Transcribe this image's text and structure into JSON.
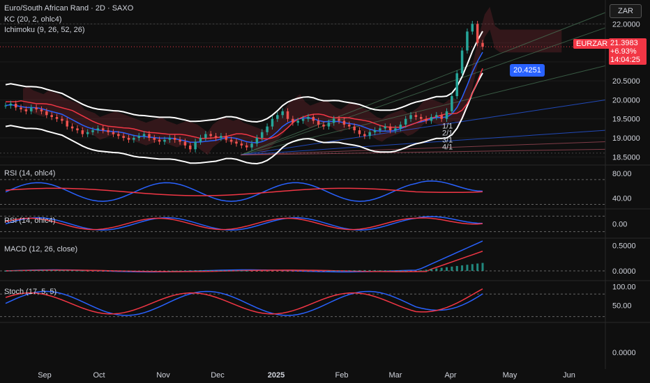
{
  "header": {
    "title": "Euro/South African Rand · 2D · SAXO",
    "kc_label": "KC (20, 2, ohlc4)",
    "ichimoku_label": "Ichimoku (9, 26, 52, 26)",
    "currency": "ZAR"
  },
  "price_badge": {
    "symbol": "EURZAR",
    "price": "21.3983",
    "change": "+6.93%",
    "countdown": "14:04:25"
  },
  "cursor_badge": "20.4251",
  "fib_labels": [
    "1/1",
    "2/1",
    "3/1",
    "4/1"
  ],
  "colors": {
    "up": "#26a69a",
    "down": "#ef5350",
    "blue_line": "#2962ff",
    "red_line": "#f23645",
    "badge_blue": "#2962ff",
    "badge_red": "#f23645"
  },
  "panes": {
    "rsi": {
      "label": "RSI (14, ohlc4)",
      "ticks": [
        "80.00",
        "40.00"
      ]
    },
    "fisher": {
      "label": "Fisher (9)",
      "ticks": [
        "0.00"
      ]
    },
    "macd": {
      "label": "MACD (12, 26, close)",
      "ticks": [
        "0.5000",
        "0.0000"
      ]
    },
    "stoch": {
      "label": "Stoch (17, 5, 5)",
      "ticks": [
        "100.00",
        "50.00"
      ]
    },
    "empty": {
      "ticks": [
        "0.0000"
      ]
    }
  },
  "chart_data": {
    "type": "candlestick",
    "y_ticks": [
      "22.0000",
      "21.5000",
      "21.0000",
      "20.5000",
      "20.0000",
      "19.5000",
      "19.0000",
      "18.5000"
    ],
    "y_tick_values": [
      22.0,
      21.5,
      21.0,
      20.5,
      20.0,
      19.5,
      19.0,
      18.5
    ],
    "ylim": [
      18.45,
      22.3
    ],
    "x_labels": [
      "Sep",
      "Oct",
      "Nov",
      "Dec",
      "2025",
      "Feb",
      "Mar",
      "Apr",
      "May",
      "Jun"
    ],
    "close_series": [
      19.85,
      19.9,
      19.8,
      19.75,
      19.7,
      19.8,
      19.75,
      19.7,
      19.6,
      19.55,
      19.5,
      19.45,
      19.3,
      19.25,
      19.2,
      19.1,
      19.15,
      19.2,
      19.25,
      19.2,
      19.15,
      19.1,
      19.05,
      19.0,
      18.95,
      19.0,
      19.05,
      19.1,
      19.0,
      18.95,
      18.9,
      18.95,
      19.0,
      18.95,
      18.9,
      18.8,
      18.7,
      18.9,
      19.0,
      19.1,
      19.05,
      19.0,
      19.05,
      18.95,
      18.9,
      18.85,
      18.8,
      18.75,
      18.85,
      19.0,
      19.15,
      19.3,
      19.5,
      19.6,
      19.7,
      19.5,
      19.4,
      19.45,
      19.5,
      19.55,
      19.45,
      19.35,
      19.3,
      19.4,
      19.5,
      19.45,
      19.35,
      19.3,
      19.2,
      19.1,
      19.05,
      19.15,
      19.2,
      19.25,
      19.3,
      19.2,
      19.25,
      19.35,
      19.5,
      19.6,
      19.55,
      19.5,
      19.45,
      19.55,
      19.6,
      19.5,
      19.7,
      20.1,
      20.7,
      21.3,
      21.8,
      22.0,
      21.5,
      21.4
    ]
  }
}
